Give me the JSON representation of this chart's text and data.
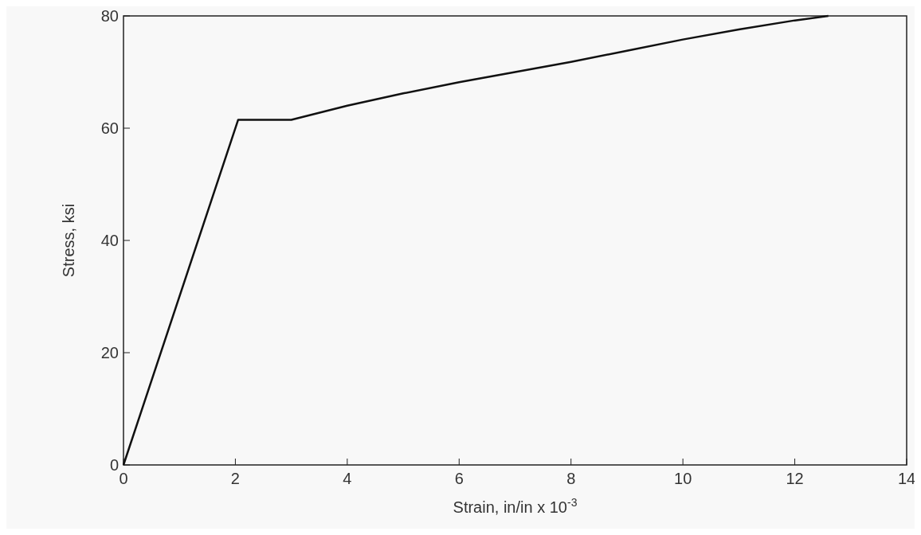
{
  "chart_data": {
    "type": "line",
    "xlabel": "Strain, in/in x 10$^{-3}$",
    "ylabel": "Stress, ksi",
    "x": [
      0,
      2.05,
      3,
      4,
      5,
      6,
      7,
      8,
      9,
      10,
      11,
      12,
      12.6
    ],
    "series": [
      {
        "color": "#111111",
        "values": [
          0,
          61.5,
          61.5,
          64,
          66.2,
          68.2,
          70,
          71.8,
          73.8,
          75.8,
          77.6,
          79.2,
          80
        ]
      }
    ],
    "xlim": [
      0,
      14
    ],
    "xticks": [
      0,
      2,
      4,
      6,
      8,
      10,
      12,
      14
    ],
    "ylim": [
      0,
      80
    ],
    "yticks": [
      0,
      20,
      40,
      60,
      80
    ],
    "grid": false,
    "marker": "none",
    "line_style": "solid"
  }
}
